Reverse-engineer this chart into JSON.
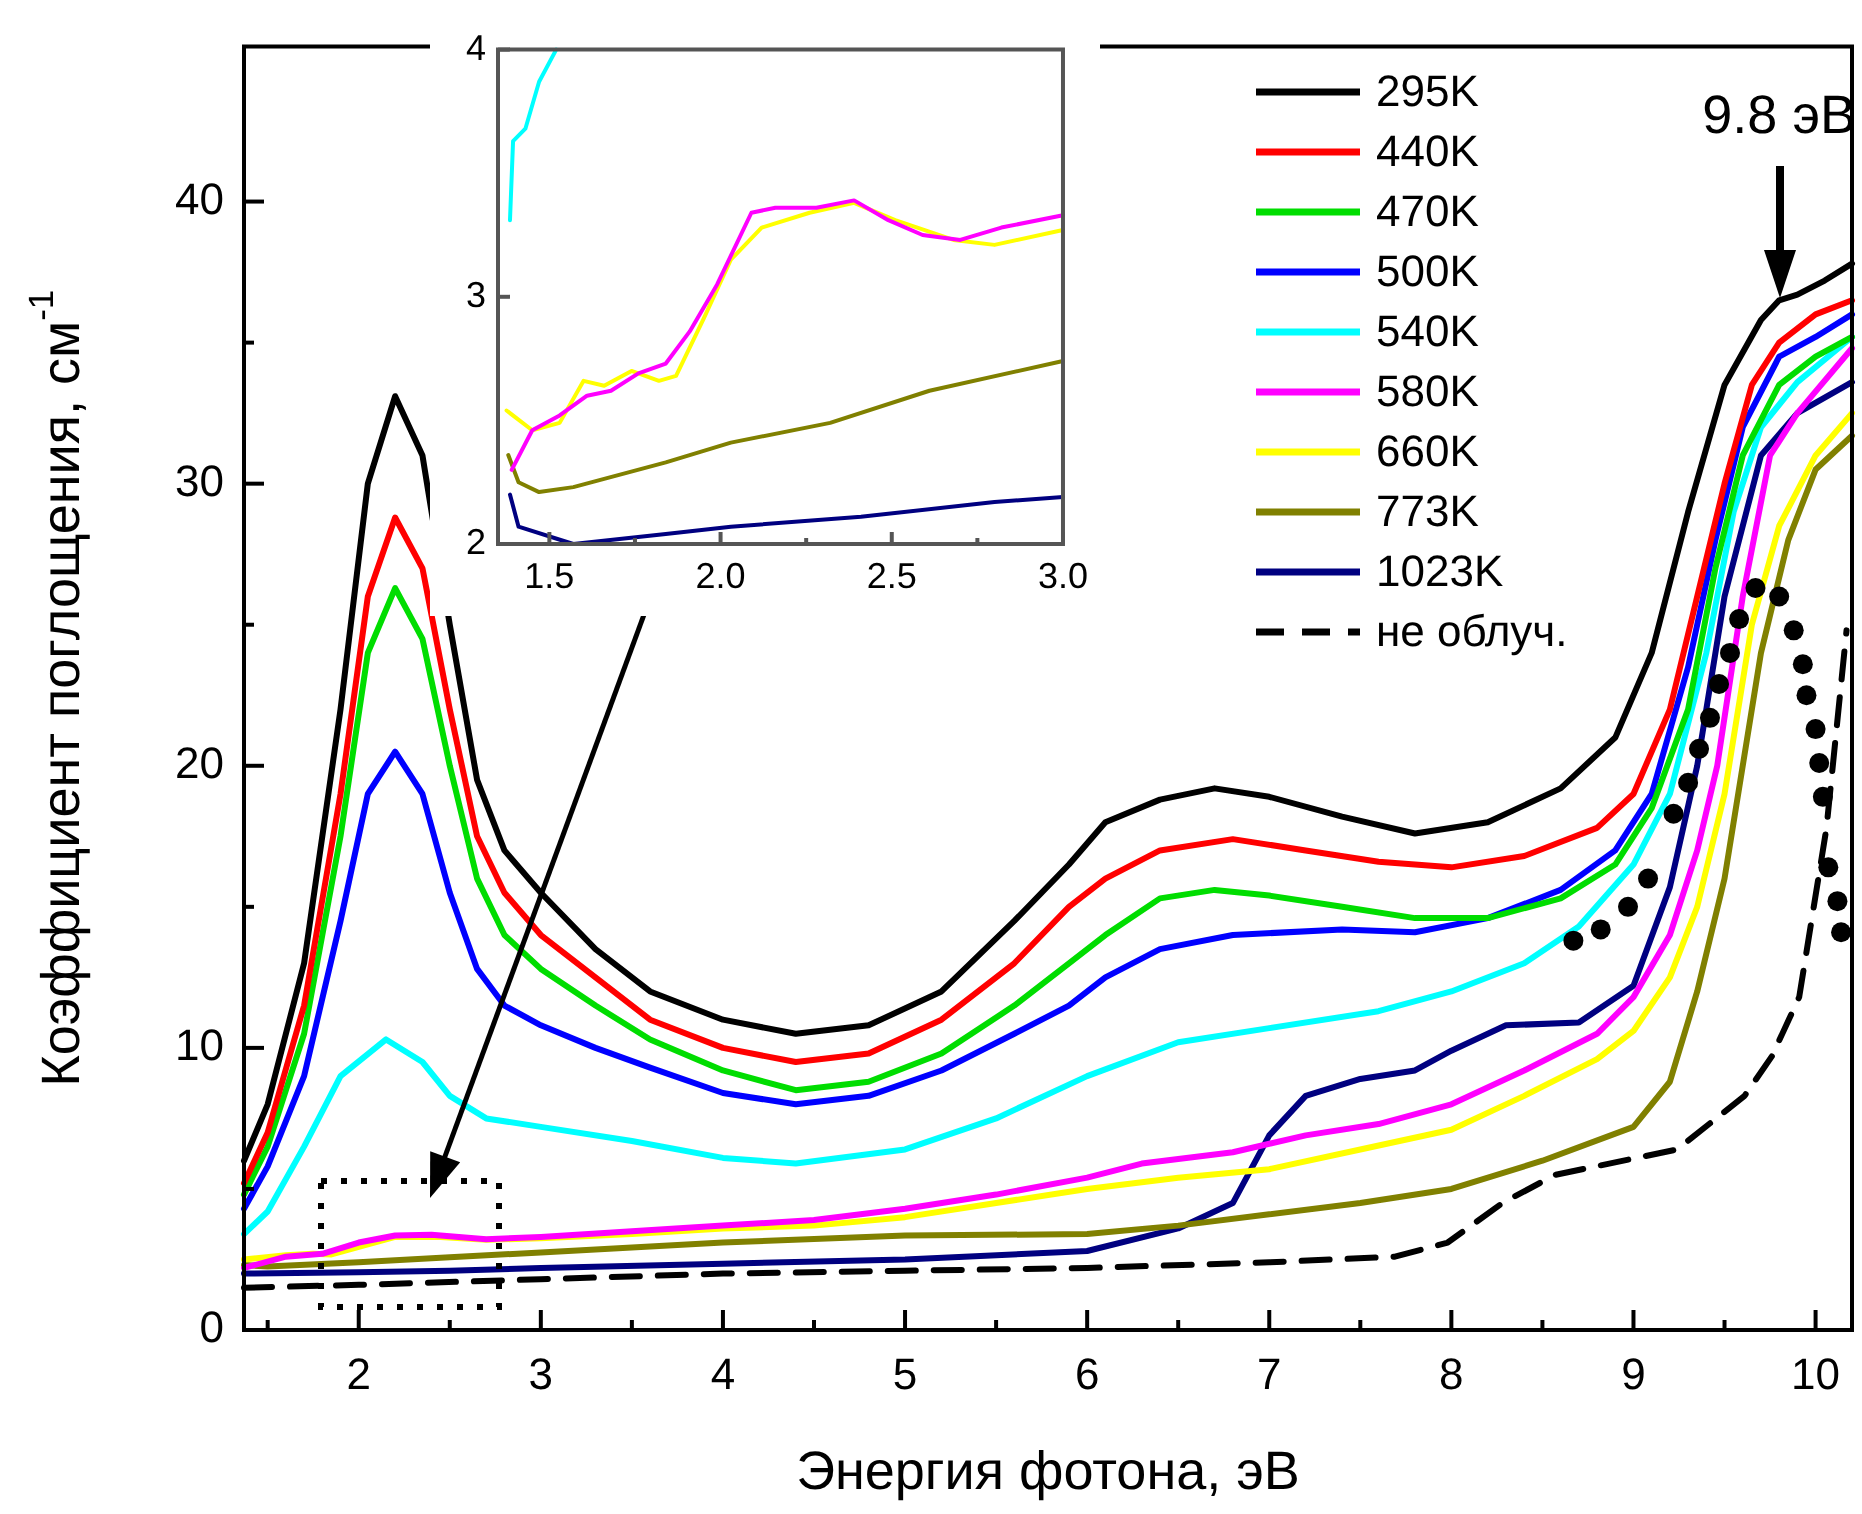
{
  "chart_data": [
    {
      "type": "line",
      "xlabel": "Энергия фотона, эВ",
      "ylabel": "Коэффициент поглощения, см$^{-1}$",
      "xlim": [
        1.37,
        10.2
      ],
      "ylim": [
        0,
        45.5
      ],
      "xticks": [
        {
          "value": 1.5,
          "label": null
        },
        2,
        {
          "value": 2.5,
          "label": null
        },
        3,
        {
          "value": 3.5,
          "label": null
        },
        4,
        {
          "value": 4.5,
          "label": null
        },
        5,
        {
          "value": 5.5,
          "label": null
        },
        6,
        {
          "value": 6.5,
          "label": null
        },
        7,
        {
          "value": 7.5,
          "label": null
        },
        8,
        {
          "value": 8.5,
          "label": null
        },
        9,
        {
          "value": 9.5,
          "label": null
        },
        10
      ],
      "yticks": [
        0,
        {
          "value": 5,
          "label": null
        },
        10,
        {
          "value": 15,
          "label": null
        },
        20,
        {
          "value": 25,
          "label": null
        },
        30,
        {
          "value": 35,
          "label": null
        },
        40
      ],
      "legend": "top right",
      "annotations": [
        {
          "text": "9.8 эВ",
          "x": 9.8,
          "y": 36.3
        }
      ],
      "series": [
        {
          "name": "295K",
          "color": "#000000",
          "x": [
            1.37,
            1.5,
            1.7,
            1.9,
            2.05,
            2.2,
            2.35,
            2.5,
            2.65,
            2.8,
            3.0,
            3.3,
            3.6,
            4.0,
            4.4,
            4.8,
            5.2,
            5.6,
            5.9,
            6.1,
            6.4,
            6.7,
            7.0,
            7.4,
            7.8,
            8.2,
            8.6,
            8.9,
            9.1,
            9.3,
            9.5,
            9.7,
            9.8,
            9.9,
            10.05,
            10.2
          ],
          "values": [
            6.0,
            8,
            13,
            22,
            30,
            33.1,
            31,
            25,
            19.5,
            17,
            15.5,
            13.5,
            12,
            11,
            10.5,
            10.8,
            12,
            14.5,
            16.5,
            18,
            18.8,
            19.2,
            18.9,
            18.2,
            17.6,
            18,
            19.2,
            21,
            24,
            29,
            33.5,
            35.8,
            36.5,
            36.7,
            37.2,
            37.8
          ]
        },
        {
          "name": "440K",
          "color": "#ff0000",
          "x": [
            1.37,
            1.5,
            1.7,
            1.9,
            2.05,
            2.2,
            2.35,
            2.5,
            2.65,
            2.8,
            3.0,
            3.3,
            3.6,
            4.0,
            4.4,
            4.8,
            5.2,
            5.6,
            5.9,
            6.1,
            6.4,
            6.8,
            7.2,
            7.6,
            8.0,
            8.4,
            8.8,
            9.0,
            9.2,
            9.35,
            9.5,
            9.65,
            9.8,
            10.0,
            10.2
          ],
          "values": [
            5.2,
            7,
            11.5,
            19,
            26,
            28.8,
            27,
            22,
            17.5,
            15.5,
            14,
            12.5,
            11,
            10,
            9.5,
            9.8,
            11,
            13,
            15,
            16,
            17,
            17.4,
            17,
            16.6,
            16.4,
            16.8,
            17.8,
            19,
            22,
            26,
            30,
            33.5,
            35,
            36,
            36.5
          ]
        },
        {
          "name": "470K",
          "color": "#00dd00",
          "x": [
            1.37,
            1.5,
            1.7,
            1.9,
            2.05,
            2.2,
            2.35,
            2.5,
            2.65,
            2.8,
            3.0,
            3.3,
            3.6,
            4.0,
            4.4,
            4.8,
            5.2,
            5.6,
            5.9,
            6.1,
            6.4,
            6.7,
            7.0,
            7.4,
            7.8,
            8.2,
            8.6,
            8.9,
            9.1,
            9.3,
            9.45,
            9.6,
            9.8,
            10.0,
            10.2
          ],
          "values": [
            4.8,
            6.5,
            10.5,
            17.5,
            24,
            26.3,
            24.5,
            20,
            16,
            14,
            12.8,
            11.5,
            10.3,
            9.2,
            8.5,
            8.8,
            9.8,
            11.5,
            13,
            14,
            15.3,
            15.6,
            15.4,
            15,
            14.6,
            14.6,
            15.3,
            16.5,
            18.5,
            22,
            27,
            31,
            33.5,
            34.5,
            35.2
          ]
        },
        {
          "name": "500K",
          "color": "#0000ff",
          "x": [
            1.37,
            1.5,
            1.7,
            1.9,
            2.05,
            2.2,
            2.35,
            2.5,
            2.65,
            2.8,
            3.0,
            3.3,
            3.6,
            4.0,
            4.4,
            4.8,
            5.2,
            5.6,
            5.9,
            6.1,
            6.4,
            6.8,
            7.4,
            7.8,
            8.2,
            8.6,
            8.9,
            9.1,
            9.3,
            9.45,
            9.6,
            9.8,
            10.0,
            10.2
          ],
          "values": [
            4.3,
            5.8,
            9,
            14.5,
            19,
            20.5,
            19,
            15.5,
            12.8,
            11.5,
            10.8,
            10,
            9.3,
            8.4,
            8,
            8.3,
            9.2,
            10.5,
            11.5,
            12.5,
            13.5,
            14,
            14.2,
            14.1,
            14.6,
            15.6,
            17,
            19,
            23.5,
            28,
            32,
            34.5,
            35.2,
            36
          ]
        },
        {
          "name": "540K",
          "color": "#00ffff",
          "x": [
            1.37,
            1.5,
            1.7,
            1.9,
            2.15,
            2.35,
            2.5,
            2.7,
            3.0,
            3.5,
            4.0,
            4.4,
            5.0,
            5.5,
            6.0,
            6.5,
            7.0,
            7.6,
            8.0,
            8.4,
            8.7,
            9.0,
            9.2,
            9.4,
            9.55,
            9.7,
            9.9,
            10.2
          ],
          "values": [
            3.4,
            4.2,
            6.5,
            9,
            10.3,
            9.5,
            8.3,
            7.5,
            7.2,
            6.7,
            6.1,
            5.9,
            6.4,
            7.5,
            9,
            10.2,
            10.7,
            11.3,
            12,
            13,
            14.3,
            16.5,
            19,
            24,
            29,
            32,
            33.6,
            35.2
          ]
        },
        {
          "name": "580K",
          "color": "#ff00ff",
          "x": [
            1.37,
            1.6,
            1.8,
            2.0,
            2.2,
            2.4,
            2.7,
            3.0,
            3.5,
            4.0,
            4.5,
            5.0,
            5.5,
            6.0,
            6.3,
            6.8,
            7.2,
            7.6,
            8.0,
            8.4,
            8.8,
            9.0,
            9.2,
            9.35,
            9.46,
            9.6,
            9.75,
            9.9,
            10.2
          ],
          "values": [
            2.2,
            2.6,
            2.7,
            3.1,
            3.35,
            3.38,
            3.22,
            3.3,
            3.5,
            3.7,
            3.9,
            4.3,
            4.8,
            5.4,
            5.9,
            6.3,
            6.9,
            7.3,
            8.0,
            9.2,
            10.5,
            11.8,
            14,
            17,
            20,
            26,
            31,
            32.5,
            34.8
          ]
        },
        {
          "name": "660K",
          "color": "#ffff00",
          "x": [
            1.37,
            1.6,
            1.75,
            1.85,
            2.0,
            2.2,
            2.45,
            2.7,
            3.0,
            3.5,
            4.0,
            4.5,
            5.0,
            5.5,
            6.0,
            6.5,
            7.0,
            7.5,
            8.0,
            8.4,
            8.8,
            9.0,
            9.2,
            9.35,
            9.5,
            9.65,
            9.8,
            10.0,
            10.2
          ],
          "values": [
            2.5,
            2.65,
            2.7,
            2.68,
            2.95,
            3.3,
            3.3,
            3.2,
            3.25,
            3.4,
            3.6,
            3.7,
            4.0,
            4.5,
            5.0,
            5.4,
            5.7,
            6.4,
            7.1,
            8.3,
            9.6,
            10.6,
            12.5,
            15,
            19,
            25,
            28.5,
            31,
            32.5
          ]
        },
        {
          "name": "773K",
          "color": "#808000",
          "x": [
            1.37,
            1.5,
            2.0,
            2.5,
            3.0,
            4.0,
            5.0,
            6.0,
            6.5,
            7.0,
            7.5,
            8.0,
            8.5,
            9.0,
            9.2,
            9.35,
            9.5,
            9.6,
            9.7,
            9.85,
            10.0,
            10.2
          ],
          "values": [
            2.3,
            2.25,
            2.4,
            2.58,
            2.75,
            3.1,
            3.35,
            3.4,
            3.7,
            4.1,
            4.5,
            5.0,
            6.0,
            7.2,
            8.8,
            12,
            16,
            20,
            24,
            28,
            30.5,
            31.7
          ]
        },
        {
          "name": "1023K",
          "color": "#000080",
          "x": [
            1.37,
            2.0,
            2.5,
            3.0,
            4.0,
            5.0,
            6.0,
            6.5,
            6.8,
            7.0,
            7.2,
            7.5,
            7.8,
            8.0,
            8.3,
            8.7,
            9.0,
            9.2,
            9.35,
            9.5,
            9.7,
            9.9,
            10.2
          ],
          "values": [
            2.0,
            2.05,
            2.1,
            2.2,
            2.35,
            2.5,
            2.8,
            3.6,
            4.5,
            6.9,
            8.3,
            8.9,
            9.2,
            9.9,
            10.8,
            10.9,
            12.2,
            15.7,
            20,
            26,
            31,
            32.5,
            33.6
          ]
        },
        {
          "name": "не облуч.",
          "color": "#000000",
          "line_style": "dashed",
          "x": [
            1.37,
            2,
            3,
            4,
            5,
            6,
            7,
            7.69,
            7.98,
            8.28,
            8.57,
            9.24,
            9.61,
            9.76,
            9.91,
            10.06,
            10.17
          ],
          "values": [
            1.5,
            1.6,
            1.8,
            2.0,
            2.1,
            2.2,
            2.4,
            2.6,
            3.1,
            4.5,
            5.5,
            6.4,
            8.3,
            9.7,
            11.8,
            17.8,
            24.8
          ]
        },
        {
          "type": "scatter",
          "marker": "circle",
          "color": "#000000",
          "x": [
            8.67,
            8.82,
            8.97,
            9.08,
            9.22,
            9.3,
            9.36,
            9.42,
            9.47,
            9.53,
            9.58,
            9.67,
            9.8,
            9.88,
            9.93,
            9.95,
            10.0,
            10.02,
            10.04,
            10.07,
            10.12,
            10.14
          ],
          "values": [
            13.8,
            14.2,
            15.0,
            16.0,
            18.3,
            19.4,
            20.6,
            21.7,
            22.9,
            24.0,
            25.2,
            26.3,
            26.0,
            24.8,
            23.6,
            22.5,
            21.3,
            20.1,
            18.9,
            16.4,
            15.2,
            14.1
          ]
        }
      ]
    },
    {
      "type": "line",
      "xlim": [
        1.35,
        3.0
      ],
      "ylim": [
        2,
        4
      ],
      "xticks": [
        {
          "value": 1.5,
          "label": "1.5"
        },
        {
          "value": 1.75,
          "label": null
        },
        {
          "value": 2,
          "label": "2.0"
        },
        {
          "value": 2.25,
          "label": null
        },
        {
          "value": 2.5,
          "label": "2.5"
        },
        {
          "value": 2.75,
          "label": null
        },
        {
          "value": 3,
          "label": "3.0"
        }
      ],
      "yticks": [
        2,
        3,
        4
      ],
      "series": [
        {
          "color": "#00ffff",
          "x": [
            1.385,
            1.394,
            1.43,
            1.47,
            1.52
          ],
          "values": [
            3.31,
            3.63,
            3.68,
            3.87,
            4.0
          ]
        },
        {
          "color": "#ff00ff",
          "x": [
            1.39,
            1.45,
            1.53,
            1.61,
            1.68,
            1.76,
            1.84,
            1.91,
            1.99,
            2.09,
            2.16,
            2.28,
            2.39,
            2.49,
            2.59,
            2.7,
            2.82,
            3.0
          ],
          "values": [
            2.3,
            2.46,
            2.52,
            2.6,
            2.62,
            2.69,
            2.73,
            2.86,
            3.05,
            3.34,
            3.36,
            3.36,
            3.39,
            3.31,
            3.25,
            3.23,
            3.28,
            3.33
          ]
        },
        {
          "color": "#ffff00",
          "x": [
            1.375,
            1.45,
            1.53,
            1.6,
            1.66,
            1.74,
            1.82,
            1.87,
            1.95,
            2.03,
            2.12,
            2.26,
            2.39,
            2.51,
            2.68,
            2.8,
            3.0
          ],
          "values": [
            2.54,
            2.46,
            2.49,
            2.66,
            2.64,
            2.7,
            2.66,
            2.68,
            2.91,
            3.15,
            3.28,
            3.34,
            3.38,
            3.31,
            3.23,
            3.21,
            3.27
          ]
        },
        {
          "color": "#808000",
          "x": [
            1.38,
            1.41,
            1.47,
            1.57,
            1.84,
            2.03,
            2.32,
            2.61,
            3.0
          ],
          "values": [
            2.36,
            2.25,
            2.21,
            2.23,
            2.33,
            2.41,
            2.49,
            2.62,
            2.74
          ]
        },
        {
          "color": "#000080",
          "x": [
            1.385,
            1.41,
            1.57,
            1.84,
            2.03,
            2.41,
            2.8,
            3.0
          ],
          "values": [
            2.2,
            2.07,
            2.0,
            2.04,
            2.07,
            2.11,
            2.17,
            2.19
          ]
        }
      ]
    }
  ]
}
